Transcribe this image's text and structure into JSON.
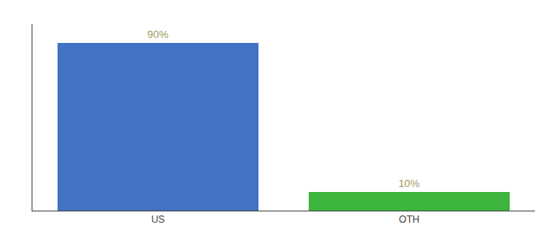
{
  "chart_data": {
    "type": "bar",
    "categories": [
      "US",
      "OTH"
    ],
    "values": [
      90,
      10
    ],
    "value_labels": [
      "90%",
      "10%"
    ],
    "colors": [
      "#4472c4",
      "#3db53d"
    ],
    "ylim": [
      0,
      100
    ],
    "grid": false,
    "data_labels": true,
    "tick_labels": "x"
  }
}
